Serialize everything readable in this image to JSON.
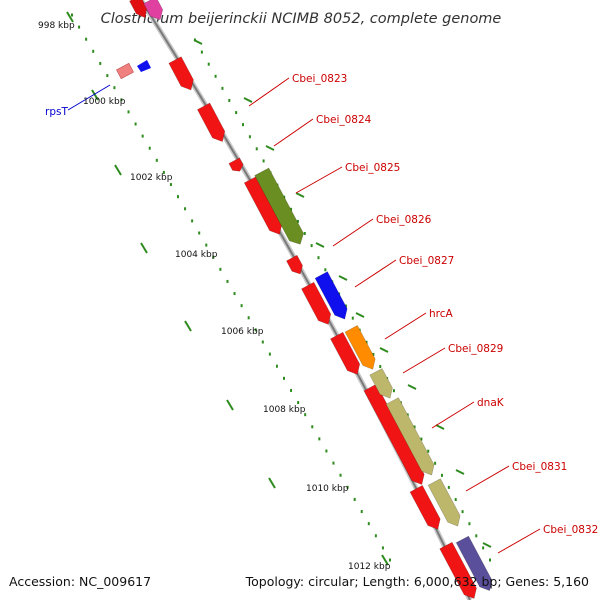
{
  "title": "Clostridium beijerinckii NCIMB 8052, complete genome",
  "footer": {
    "accession": "Accession: NC_009617",
    "topology": "Topology: circular; Length: 6,000,632 bp; Genes: 5,160"
  },
  "colors": {
    "backbone": "#8c8c8c",
    "tick_dots": "#2e8b1e",
    "label_red": "#cc0000",
    "label_blue": "#0000cc"
  },
  "ticks": [
    "998 kbp",
    "1000 kbp",
    "1002 kbp",
    "1004 kbp",
    "1006 kbp",
    "1008 kbp",
    "1010 kbp",
    "1012 kbp"
  ],
  "gene_labels": [
    {
      "text": "Cbei_0823",
      "color": "#cc0000"
    },
    {
      "text": "Cbei_0824",
      "color": "#cc0000"
    },
    {
      "text": "Cbei_0825",
      "color": "#cc0000"
    },
    {
      "text": "Cbei_0826",
      "color": "#cc0000"
    },
    {
      "text": "Cbei_0827",
      "color": "#cc0000"
    },
    {
      "text": "hrcA",
      "color": "#cc0000"
    },
    {
      "text": "Cbei_0829",
      "color": "#cc0000"
    },
    {
      "text": "dnaK",
      "color": "#cc0000"
    },
    {
      "text": "Cbei_0831",
      "color": "#cc0000"
    },
    {
      "text": "Cbei_0832",
      "color": "#cc0000"
    },
    {
      "text": "rpsT",
      "color": "#0000cc"
    }
  ]
}
